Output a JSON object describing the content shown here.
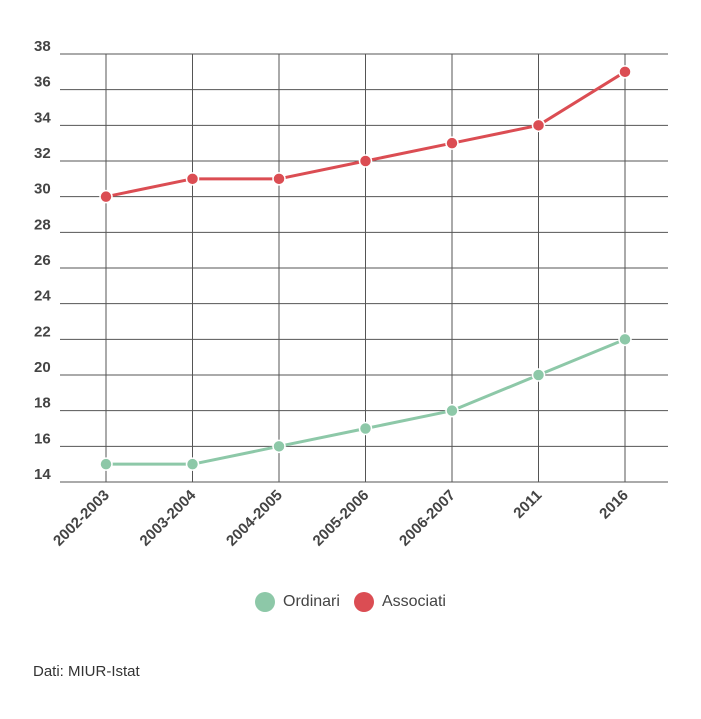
{
  "chart_data": {
    "type": "line",
    "categories": [
      "2002-2003",
      "2003-2004",
      "2004-2005",
      "2005-2006",
      "2006-2007",
      "2011",
      "2016"
    ],
    "series": [
      {
        "name": "Ordinari",
        "values": [
          15,
          15,
          16,
          17,
          18,
          20,
          22
        ],
        "color": "#8dc8a8"
      },
      {
        "name": "Associati",
        "values": [
          30,
          31,
          31,
          32,
          33,
          34,
          37
        ],
        "color": "#db4d53"
      }
    ],
    "ylim": [
      14,
      38
    ],
    "yticks": [
      14,
      16,
      18,
      20,
      22,
      24,
      26,
      28,
      30,
      32,
      34,
      36,
      38
    ],
    "grid": true,
    "legend_position": "bottom-center"
  },
  "source_note": "Dati: MIUR-Istat"
}
